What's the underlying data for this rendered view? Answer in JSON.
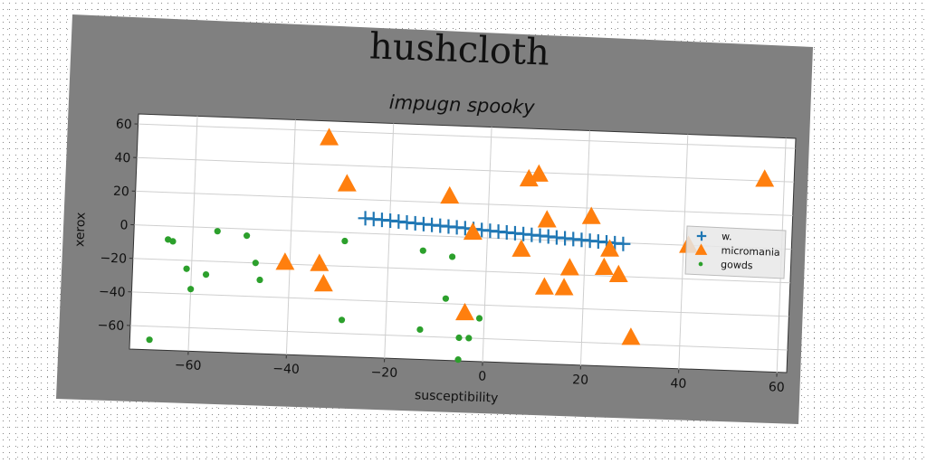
{
  "figure": {
    "suptitle": "hushcloth",
    "background_color": "#808080"
  },
  "chart_data": {
    "type": "scatter",
    "title": "impugn spooky",
    "xlabel": "susceptibility",
    "ylabel": "xerox",
    "xlim": [
      -72,
      62
    ],
    "ylim": [
      -74,
      66
    ],
    "xticks": [
      -60,
      -40,
      -20,
      0,
      20,
      40,
      60
    ],
    "yticks": [
      -60,
      -40,
      -20,
      0,
      20,
      40,
      60
    ],
    "xtick_labels": [
      "−60",
      "−40",
      "−20",
      "0",
      "20",
      "40",
      "60"
    ],
    "ytick_labels": [
      "−60",
      "−40",
      "−20",
      "0",
      "20",
      "40",
      "60"
    ],
    "grid": true,
    "legend_position": "right",
    "series": [
      {
        "name": "w.",
        "marker": "plus",
        "color": "#1f77b4",
        "points": [
          [
            -25,
            9.0
          ],
          [
            -23.3,
            8.7
          ],
          [
            -21.6,
            8.4
          ],
          [
            -19.9,
            8.1
          ],
          [
            -18.2,
            7.8
          ],
          [
            -16.5,
            7.4
          ],
          [
            -14.8,
            7.1
          ],
          [
            -13.1,
            6.8
          ],
          [
            -11.4,
            6.5
          ],
          [
            -9.7,
            6.2
          ],
          [
            -8.0,
            5.9
          ],
          [
            -6.3,
            5.6
          ],
          [
            -4.6,
            5.3
          ],
          [
            -2.9,
            5.0
          ],
          [
            -1.2,
            4.6
          ],
          [
            0.5,
            4.3
          ],
          [
            2.2,
            4.0
          ],
          [
            3.9,
            3.7
          ],
          [
            5.6,
            3.4
          ],
          [
            7.3,
            3.1
          ],
          [
            9.0,
            2.8
          ],
          [
            10.7,
            2.5
          ],
          [
            12.4,
            2.2
          ],
          [
            14.1,
            1.8
          ],
          [
            15.8,
            1.5
          ],
          [
            17.5,
            1.2
          ],
          [
            19.2,
            0.9
          ],
          [
            20.9,
            0.6
          ],
          [
            22.6,
            0.3
          ],
          [
            24.3,
            0.0
          ],
          [
            26.0,
            -0.3
          ],
          [
            27.7,
            -0.6
          ]
        ]
      },
      {
        "name": "micromania",
        "marker": "triangle",
        "color": "#ff7f0e",
        "points": [
          [
            -33,
            56
          ],
          [
            -29,
            29
          ],
          [
            -41,
            -19
          ],
          [
            -34,
            -19
          ],
          [
            -33,
            -31
          ],
          [
            -8,
            24
          ],
          [
            -3,
            3
          ],
          [
            7,
            -6
          ],
          [
            8,
            36
          ],
          [
            10,
            39
          ],
          [
            12,
            12
          ],
          [
            12,
            -28
          ],
          [
            16,
            -28
          ],
          [
            17,
            -16
          ],
          [
            21,
            15
          ],
          [
            24,
            -15
          ],
          [
            25,
            -4
          ],
          [
            27,
            -19
          ],
          [
            30,
            -56
          ],
          [
            41,
            0
          ],
          [
            56,
            41
          ],
          [
            -4,
            -45
          ]
        ]
      },
      {
        "name": "gowds",
        "marker": "circle",
        "color": "#2ca02c",
        "points": [
          [
            -68,
            -68
          ],
          [
            -65,
            -8
          ],
          [
            -64,
            -9
          ],
          [
            -61,
            -25
          ],
          [
            -60,
            -37
          ],
          [
            -57,
            -28
          ],
          [
            -55,
            -2
          ],
          [
            -49,
            -4
          ],
          [
            -47,
            -20
          ],
          [
            -46,
            -30
          ],
          [
            -29,
            -5
          ],
          [
            -29,
            -52
          ],
          [
            -13,
            -9
          ],
          [
            -13,
            -56
          ],
          [
            -8,
            -37
          ],
          [
            -7,
            -12
          ],
          [
            -5,
            -60
          ],
          [
            -5,
            -73
          ],
          [
            -3,
            -60
          ],
          [
            -1,
            -48
          ]
        ]
      }
    ]
  }
}
